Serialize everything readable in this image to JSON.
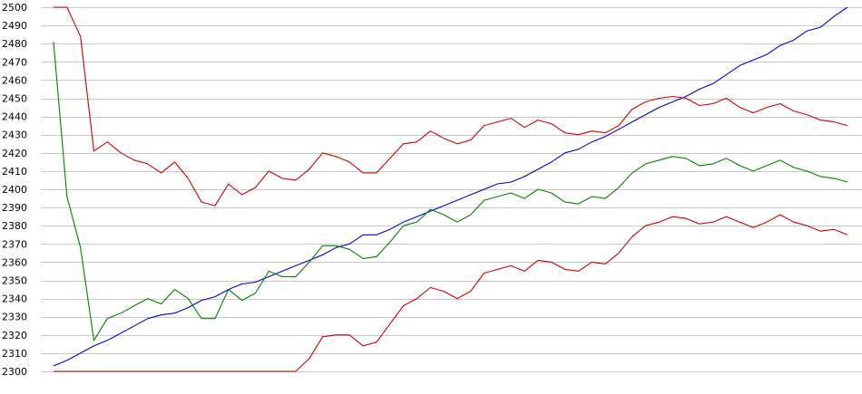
{
  "chart_data": {
    "type": "line",
    "title": "",
    "xlabel": "",
    "ylabel": "",
    "ylim": [
      2300,
      2500
    ],
    "yticks": [
      2300,
      2310,
      2320,
      2330,
      2340,
      2350,
      2360,
      2370,
      2380,
      2390,
      2400,
      2410,
      2420,
      2430,
      2440,
      2450,
      2460,
      2470,
      2480,
      2490,
      2500
    ],
    "grid": true,
    "legend": "none",
    "x_count": 60,
    "series": [
      {
        "color": "#0000cc",
        "values": [
          2303,
          2306,
          2310,
          2314,
          2317,
          2321,
          2325,
          2329,
          2331,
          2332,
          2335,
          2339,
          2341,
          2345,
          2348,
          2349,
          2352,
          2355,
          2358,
          2361,
          2364,
          2368,
          2370,
          2375,
          2375,
          2378,
          2382,
          2385,
          2388,
          2391,
          2394,
          2397,
          2400,
          2403,
          2404,
          2407,
          2411,
          2415,
          2420,
          2422,
          2426,
          2429,
          2433,
          2437,
          2441,
          2445,
          2448,
          2451,
          2455,
          2458,
          2463,
          2468,
          2471,
          2474,
          2479,
          2482,
          2487,
          2489,
          2495,
          2500
        ]
      },
      {
        "color": "#cc0000",
        "values": [
          2500,
          2500,
          2484,
          2421,
          2426,
          2420,
          2416,
          2414,
          2409,
          2415,
          2406,
          2393,
          2391,
          2403,
          2397,
          2401,
          2410,
          2406,
          2405,
          2411,
          2420,
          2418,
          2415,
          2409,
          2409,
          2417,
          2425,
          2426,
          2432,
          2428,
          2425,
          2427,
          2435,
          2437,
          2439,
          2434,
          2438,
          2436,
          2431,
          2430,
          2432,
          2431,
          2435,
          2444,
          2448,
          2450,
          2451,
          2450,
          2446,
          2447,
          2450,
          2445,
          2442,
          2445,
          2447,
          2443,
          2441,
          2438,
          2437,
          2435
        ]
      },
      {
        "color": "#008000",
        "values": [
          2481,
          2396,
          2368,
          2317,
          2329,
          2332,
          2336,
          2340,
          2337,
          2345,
          2340,
          2329,
          2329,
          2345,
          2339,
          2343,
          2355,
          2352,
          2352,
          2360,
          2369,
          2369,
          2367,
          2362,
          2363,
          2371,
          2380,
          2382,
          2389,
          2386,
          2382,
          2386,
          2394,
          2396,
          2398,
          2395,
          2400,
          2398,
          2393,
          2392,
          2396,
          2395,
          2401,
          2409,
          2414,
          2416,
          2418,
          2417,
          2413,
          2414,
          2417,
          2413,
          2410,
          2413,
          2416,
          2412,
          2410,
          2407,
          2406,
          2404
        ]
      },
      {
        "color": "#cc0000",
        "values": [
          2300,
          2300,
          2300,
          2300,
          2300,
          2300,
          2300,
          2300,
          2300,
          2300,
          2300,
          2300,
          2300,
          2300,
          2300,
          2300,
          2300,
          2300,
          2300,
          2307,
          2319,
          2320,
          2320,
          2314,
          2316,
          2326,
          2336,
          2340,
          2346,
          2344,
          2340,
          2344,
          2354,
          2356,
          2358,
          2355,
          2361,
          2360,
          2356,
          2355,
          2360,
          2359,
          2365,
          2374,
          2380,
          2382,
          2385,
          2384,
          2381,
          2382,
          2385,
          2382,
          2379,
          2382,
          2386,
          2382,
          2380,
          2377,
          2378,
          2375
        ]
      }
    ]
  }
}
